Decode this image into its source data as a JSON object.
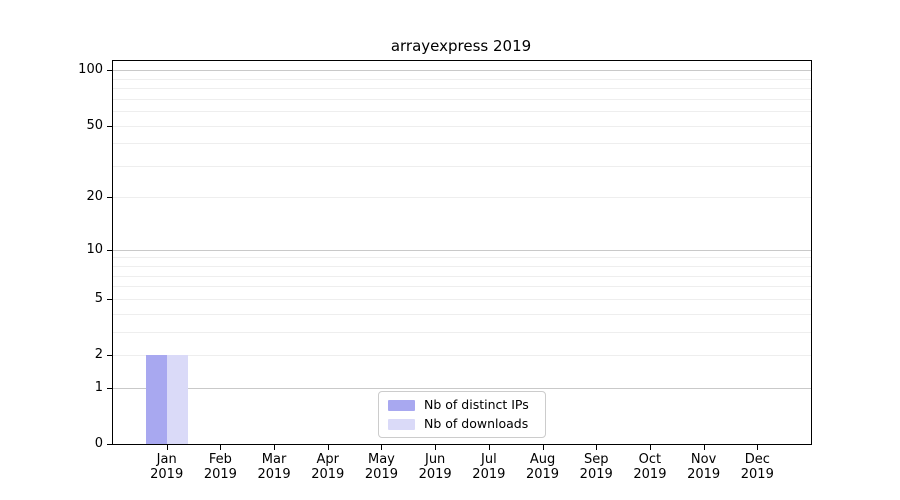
{
  "page": {
    "background": "#ffffff"
  },
  "chart_data": {
    "type": "bar",
    "title": "arrayexpress 2019",
    "categories": [
      "Jan",
      "Feb",
      "Mar",
      "Apr",
      "May",
      "Jun",
      "Jul",
      "Aug",
      "Sep",
      "Oct",
      "Nov",
      "Dec"
    ],
    "x_year_label": "2019",
    "series": [
      {
        "name": "Nb of distinct IPs",
        "color": "#a8a8f0",
        "values": [
          2,
          0,
          0,
          0,
          0,
          0,
          0,
          0,
          0,
          0,
          0,
          0
        ]
      },
      {
        "name": "Nb of downloads",
        "color": "#dadaf8",
        "values": [
          2,
          0,
          0,
          0,
          0,
          0,
          0,
          0,
          0,
          0,
          0,
          0
        ]
      }
    ],
    "yscale": "symlog-ln(1+x)",
    "ylim": [
      0,
      112
    ],
    "yticks": [
      0,
      1,
      2,
      5,
      10,
      20,
      50,
      100
    ],
    "y_major_gridlines": [
      1,
      10,
      100
    ],
    "y_minor_gridlines": [
      2,
      3,
      4,
      5,
      6,
      7,
      8,
      9,
      20,
      30,
      40,
      50,
      60,
      70,
      80,
      90
    ],
    "legend": {
      "position": "lower center",
      "entries": [
        "Nb of distinct IPs",
        "Nb of downloads"
      ]
    },
    "style": {
      "grid_major_color": "#c9c9c9",
      "grid_minor_color": "#eeeeee",
      "spine_color": "#000000",
      "text_color": "#000000"
    }
  }
}
